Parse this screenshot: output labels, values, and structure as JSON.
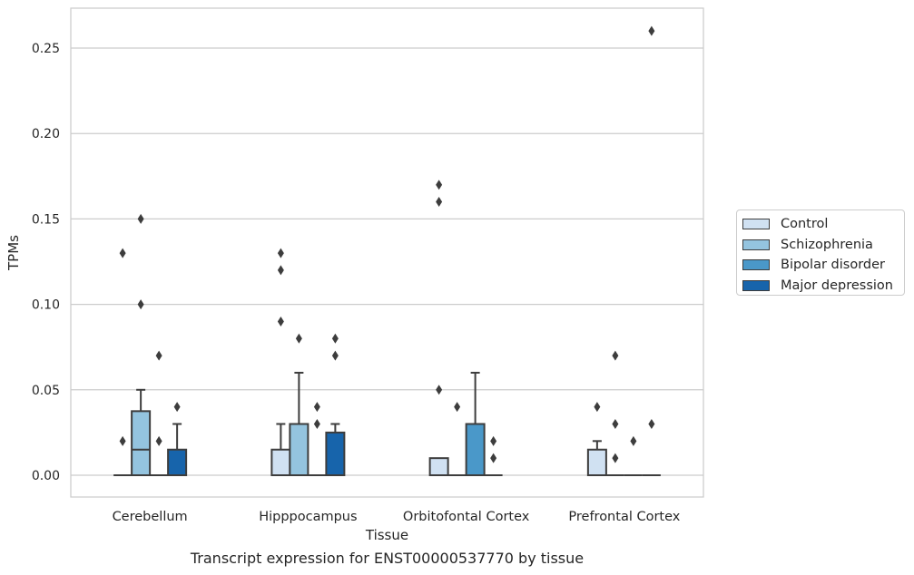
{
  "caption": "Transcript expression for ENST00000537770 by tissue",
  "legend": {
    "items": [
      {
        "label": "Control",
        "color": "#d0e1f2"
      },
      {
        "label": "Schizophrenia",
        "color": "#94c4df"
      },
      {
        "label": "Bipolar disorder",
        "color": "#4a98c9"
      },
      {
        "label": "Major depression",
        "color": "#1764ab"
      }
    ]
  },
  "chart_data": {
    "type": "box",
    "xlabel": "Tissue",
    "ylabel": "TPMs",
    "ylim": [
      -0.013,
      0.273
    ],
    "yticks": [
      "0.00",
      "0.05",
      "0.10",
      "0.15",
      "0.20",
      "0.25"
    ],
    "ytick_values": [
      0,
      0.05,
      0.1,
      0.15,
      0.2,
      0.25
    ],
    "grid": "horizontal",
    "legend_position": "right",
    "categories": [
      "Cerebellum",
      "Hipppocampus",
      "Orbitofontal Cortex",
      "Prefrontal Cortex"
    ],
    "series": [
      {
        "name": "Control",
        "color": "#d0e1f2",
        "boxes": [
          {
            "q1": 0,
            "median": 0,
            "q3": 0,
            "whisker_low": 0,
            "whisker_high": 0,
            "outliers": [
              0.02,
              0.13
            ]
          },
          {
            "q1": 0,
            "median": 0,
            "q3": 0.015,
            "whisker_low": 0,
            "whisker_high": 0.03,
            "outliers": [
              0.09,
              0.12,
              0.13
            ]
          },
          {
            "q1": 0,
            "median": 0,
            "q3": 0.01,
            "whisker_low": 0,
            "whisker_high": 0.01,
            "outliers": [
              0.05,
              0.16,
              0.17
            ]
          },
          {
            "q1": 0,
            "median": 0,
            "q3": 0.015,
            "whisker_low": 0,
            "whisker_high": 0.02,
            "outliers": [
              0.04
            ]
          }
        ]
      },
      {
        "name": "Schizophrenia",
        "color": "#94c4df",
        "boxes": [
          {
            "q1": 0,
            "median": 0.015,
            "q3": 0.0375,
            "whisker_low": 0,
            "whisker_high": 0.05,
            "outliers": [
              0.1,
              0.15
            ]
          },
          {
            "q1": 0,
            "median": 0,
            "q3": 0.03,
            "whisker_low": 0,
            "whisker_high": 0.06,
            "outliers": [
              0.08
            ]
          },
          {
            "q1": 0,
            "median": 0,
            "q3": 0,
            "whisker_low": 0,
            "whisker_high": 0,
            "outliers": [
              0.04
            ]
          },
          {
            "q1": 0,
            "median": 0,
            "q3": 0,
            "whisker_low": 0,
            "whisker_high": 0,
            "outliers": [
              0.01,
              0.03,
              0.07
            ]
          }
        ]
      },
      {
        "name": "Bipolar disorder",
        "color": "#4a98c9",
        "boxes": [
          {
            "q1": 0,
            "median": 0,
            "q3": 0,
            "whisker_low": 0,
            "whisker_high": 0,
            "outliers": [
              0.02,
              0.07
            ]
          },
          {
            "q1": 0,
            "median": 0,
            "q3": 0,
            "whisker_low": 0,
            "whisker_high": 0,
            "outliers": [
              0.03,
              0.04
            ]
          },
          {
            "q1": 0,
            "median": 0,
            "q3": 0.03,
            "whisker_low": 0,
            "whisker_high": 0.06,
            "outliers": []
          },
          {
            "q1": 0,
            "median": 0,
            "q3": 0,
            "whisker_low": 0,
            "whisker_high": 0,
            "outliers": [
              0.02
            ]
          }
        ]
      },
      {
        "name": "Major depression",
        "color": "#1764ab",
        "boxes": [
          {
            "q1": 0,
            "median": 0,
            "q3": 0.015,
            "whisker_low": 0,
            "whisker_high": 0.03,
            "outliers": [
              0.04
            ]
          },
          {
            "q1": 0,
            "median": 0,
            "q3": 0.025,
            "whisker_low": 0,
            "whisker_high": 0.03,
            "outliers": [
              0.07,
              0.08
            ]
          },
          {
            "q1": 0,
            "median": 0,
            "q3": 0,
            "whisker_low": 0,
            "whisker_high": 0,
            "outliers": [
              0.01,
              0.02
            ]
          },
          {
            "q1": 0,
            "median": 0,
            "q3": 0,
            "whisker_low": 0,
            "whisker_high": 0,
            "outliers": [
              0.03,
              0.26
            ]
          }
        ]
      }
    ]
  }
}
